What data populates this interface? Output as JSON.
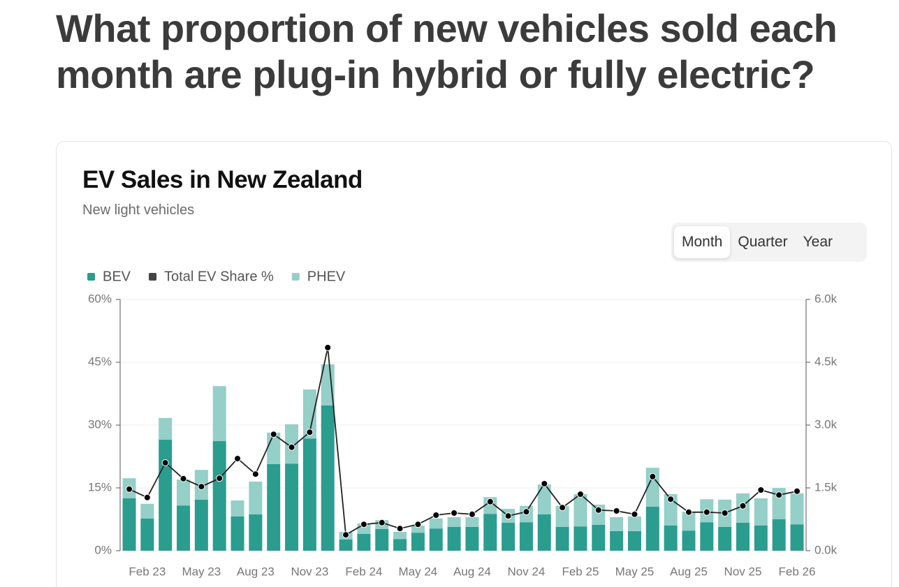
{
  "heading": "What proportion of new vehicles sold each month are plug-in hybrid or fully electric?",
  "controls": [
    "Month",
    "Quarter",
    "Year"
  ],
  "active_control": 0,
  "chart_data": {
    "type": "bar",
    "title": "EV Sales in New Zealand",
    "subtitle": "New light vehicles",
    "categories": [
      null,
      "Feb 23",
      null,
      null,
      "May 23",
      null,
      null,
      "Aug 23",
      null,
      null,
      "Nov 23",
      null,
      null,
      "Feb 24",
      null,
      null,
      "May 24",
      null,
      null,
      "Aug 24",
      null,
      null,
      "Nov 24",
      null,
      null,
      "Feb 25",
      null,
      null,
      "May 25",
      null,
      null,
      "Aug 25",
      null,
      null,
      "Nov 25",
      null,
      null,
      "Feb 26"
    ],
    "series": [
      {
        "name": "BEV",
        "type": "bar",
        "axis": "y2",
        "color": "#2a9d8f",
        "values": [
          1250,
          770,
          2650,
          1080,
          1220,
          2620,
          820,
          870,
          2070,
          2080,
          2680,
          3470,
          270,
          400,
          520,
          280,
          430,
          530,
          570,
          570,
          880,
          670,
          680,
          870,
          570,
          580,
          620,
          470,
          470,
          1050,
          600,
          480,
          680,
          570,
          670,
          600,
          750,
          630
        ]
      },
      {
        "name": "Total EV Share %",
        "type": "line",
        "color": "#222222",
        "values": [
          14.7,
          12.7,
          21,
          17.2,
          15.3,
          17.3,
          22,
          18.3,
          27.8,
          24.7,
          28.3,
          48.5,
          3.8,
          6.3,
          6.7,
          5.3,
          6.3,
          8.5,
          9,
          8.7,
          11.7,
          8.3,
          9.3,
          16,
          10.3,
          13.5,
          9.7,
          9.5,
          8.7,
          17.7,
          12.3,
          9.2,
          9.2,
          9,
          10.7,
          14.5,
          13.3,
          14.2
        ]
      },
      {
        "name": "PHEV",
        "type": "bar",
        "axis": "y2",
        "color": "#94cfc8",
        "values": [
          480,
          350,
          520,
          620,
          710,
          1310,
          380,
          780,
          750,
          940,
          1170,
          980,
          180,
          250,
          210,
          170,
          170,
          240,
          230,
          230,
          400,
          330,
          390,
          710,
          500,
          770,
          480,
          330,
          350,
          930,
          750,
          450,
          550,
          650,
          700,
          650,
          750,
          740
        ]
      }
    ],
    "ylim": [
      0,
      60
    ],
    "yticks": [
      {
        "value": 0,
        "label": "0%"
      },
      {
        "value": 15,
        "label": "15%"
      },
      {
        "value": 30,
        "label": "30%"
      },
      {
        "value": 45,
        "label": "45%"
      },
      {
        "value": 60,
        "label": "60%"
      }
    ],
    "y2lim": [
      0,
      6000
    ],
    "y2ticks": [
      {
        "value": 0,
        "label": "0.0k"
      },
      {
        "value": 1500,
        "label": "1.5k"
      },
      {
        "value": 3000,
        "label": "3.0k"
      },
      {
        "value": 4500,
        "label": "4.5k"
      },
      {
        "value": 6000,
        "label": "6.0k"
      }
    ],
    "grid": true
  }
}
